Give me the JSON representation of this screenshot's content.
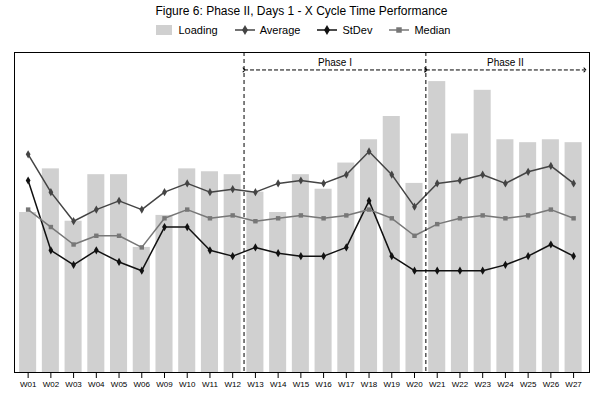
{
  "chart_data": {
    "type": "bar",
    "title": "Figure 6: Phase II, Days 1 - X  Cycle  Time Performance",
    "categories": [
      "W01",
      "W02",
      "W03",
      "W04",
      "W05",
      "W06",
      "W09",
      "W10",
      "W11",
      "W12",
      "W13",
      "W14",
      "W15",
      "W16",
      "W17",
      "W18",
      "W19",
      "W20",
      "W21",
      "W22",
      "W23",
      "W24",
      "W25",
      "W26",
      "W27"
    ],
    "series": [
      {
        "name": "Loading",
        "type": "bar",
        "color": "#d0d0d0",
        "values": [
          55,
          70,
          52,
          68,
          68,
          43,
          54,
          70,
          69,
          68,
          62,
          55,
          68,
          63,
          72,
          80,
          88,
          65,
          100,
          82,
          97,
          80,
          79,
          80,
          79
        ]
      },
      {
        "name": "Average",
        "type": "line",
        "color": "#444444",
        "marker": "diamond",
        "values": [
          75,
          62,
          52,
          56,
          59,
          56,
          62,
          65,
          62,
          63,
          62,
          65,
          66,
          65,
          68,
          76,
          68,
          57,
          65,
          66,
          68,
          65,
          69,
          71,
          65
        ]
      },
      {
        "name": "StDev",
        "type": "line",
        "color": "#111111",
        "marker": "diamond",
        "values": [
          66,
          42,
          37,
          42,
          38,
          35,
          50,
          50,
          42,
          40,
          43,
          41,
          40,
          40,
          43,
          59,
          40,
          35,
          35,
          35,
          35,
          37,
          40,
          44,
          40
        ]
      },
      {
        "name": "Median",
        "type": "line",
        "color": "#777777",
        "marker": "square",
        "values": [
          56,
          50,
          44,
          47,
          47,
          43,
          53,
          56,
          53,
          54,
          52,
          53,
          54,
          53,
          54,
          56,
          53,
          47,
          51,
          53,
          54,
          53,
          54,
          56,
          53
        ]
      }
    ],
    "annotations": [
      {
        "text": "Phase I",
        "start": "W13",
        "end": "W20",
        "y": 104
      },
      {
        "text": "Phase II",
        "start": "W21",
        "end": "W27",
        "y": 104
      }
    ],
    "ylim": [
      0,
      110
    ],
    "tick_labels": "x"
  }
}
